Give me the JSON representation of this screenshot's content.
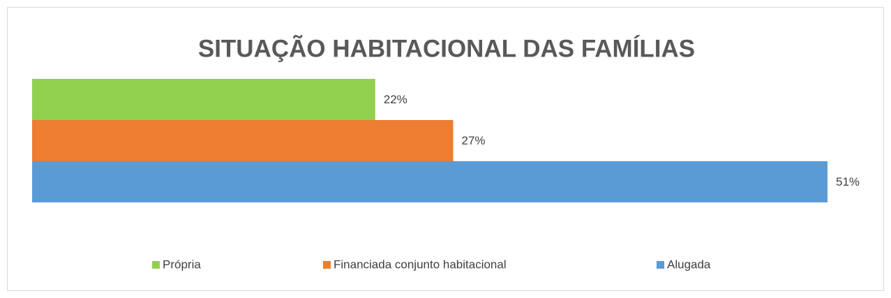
{
  "chart_data": {
    "type": "bar",
    "orientation": "horizontal",
    "title": "SITUAÇÃO HABITACIONAL DAS FAMÍLIAS",
    "series": [
      {
        "name": "Própria",
        "color": "#92d050",
        "values": [
          22
        ],
        "value_labels": [
          "22%"
        ]
      },
      {
        "name": "Financiada conjunto habitacional",
        "color": "#ed7d31",
        "values": [
          27
        ],
        "value_labels": [
          "27%"
        ]
      },
      {
        "name": "Alugada",
        "color": "#5b9bd5",
        "values": [
          51
        ],
        "value_labels": [
          "51%"
        ]
      }
    ],
    "xlim": [
      0,
      51
    ],
    "legend": "bottom"
  }
}
